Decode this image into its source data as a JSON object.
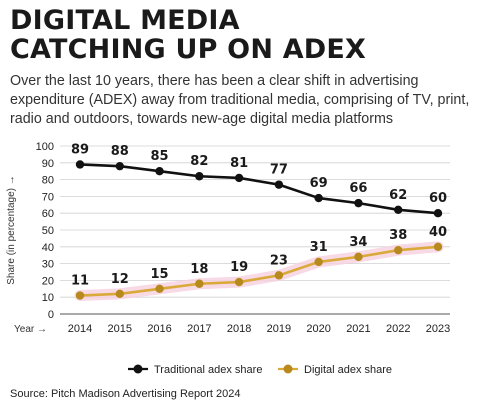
{
  "header": {
    "title_line1": "DIGITAL MEDIA",
    "title_line2": "CATCHING UP ON ADEX",
    "subtitle": "Over the last 10 years, there has been a clear shift in advertising expenditure (ADEX) away from traditional media, comprising of TV, print, radio and outdoors, towards new-age digital media platforms"
  },
  "chart_data": {
    "type": "line",
    "x": [
      "2014",
      "2015",
      "2016",
      "2017",
      "2018",
      "2019",
      "2020",
      "2021",
      "2022",
      "2023"
    ],
    "xlabel": "Year →",
    "ylabel": "Share (in percentage) →",
    "ylim": [
      0,
      100
    ],
    "yticks": [
      0,
      10,
      20,
      30,
      40,
      50,
      60,
      70,
      80,
      90,
      100
    ],
    "grid": true,
    "legend_position": "bottom",
    "series": [
      {
        "name": "Traditional adex share",
        "values": [
          89,
          88,
          85,
          82,
          81,
          77,
          69,
          66,
          62,
          60
        ],
        "color": "#111111",
        "marker_color": "#111111"
      },
      {
        "name": "Digital adex share",
        "values": [
          11,
          12,
          15,
          18,
          19,
          23,
          31,
          34,
          38,
          40
        ],
        "color": "#d9a93a",
        "marker_color": "#b88a1e",
        "glow_color": "#f6cfe0"
      }
    ]
  },
  "footer": {
    "source": "Source: Pitch Madison Advertising Report 2024"
  }
}
